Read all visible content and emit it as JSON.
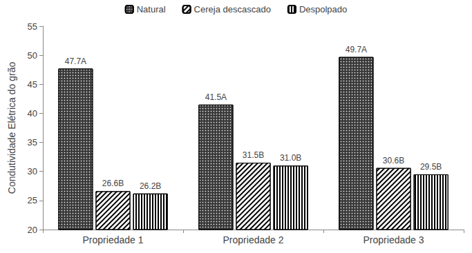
{
  "chart_data": {
    "type": "bar",
    "y_label": "Condutividade Elétrica do grão",
    "categories": [
      "Propriedade 1",
      "Propriedade 2",
      "Propriedade 3"
    ],
    "series": [
      {
        "name": "Natural",
        "color": "#3a3a3a",
        "values": [
          47.7,
          41.5,
          49.7
        ],
        "value_labels": [
          "47.7A",
          "41.5A",
          "49.7A"
        ]
      },
      {
        "name": "Cereja descascado",
        "color": "#ffffff",
        "values": [
          26.6,
          31.5,
          30.6
        ],
        "value_labels": [
          "26.6B",
          "31.5B",
          "30.6B"
        ]
      },
      {
        "name": "Despolpado",
        "color": "#ffffff",
        "values": [
          26.2,
          31.0,
          29.5
        ],
        "value_labels": [
          "26.2B",
          "31.0B",
          "29.5B"
        ]
      }
    ],
    "ylim": [
      20,
      55
    ],
    "yticks": [
      20,
      25,
      30,
      35,
      40,
      45,
      50,
      55
    ],
    "grid": false,
    "legend": "top",
    "data_labels": true
  }
}
